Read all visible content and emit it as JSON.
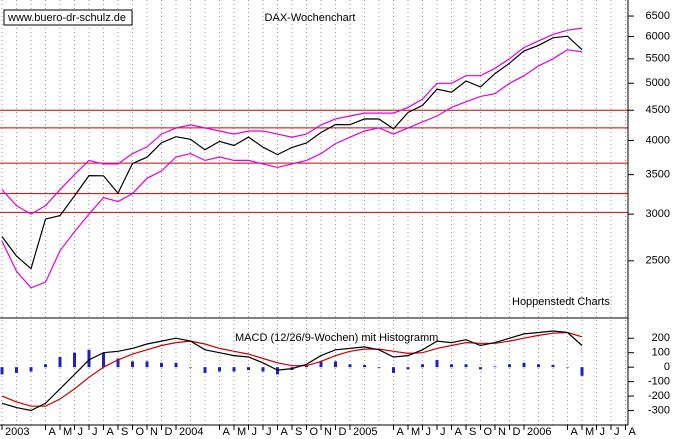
{
  "chart_data": [
    {
      "type": "line",
      "title": "DAX-Wochenchart",
      "annotations": [
        "www.buero-dr-schulz.de",
        "Hoppenstedt Charts"
      ],
      "log_scale": true,
      "grid": true,
      "ylim": [
        2000,
        6920
      ],
      "yticks": [
        2500,
        3000,
        3500,
        4000,
        4500,
        5000,
        5500,
        6000,
        6500
      ],
      "hlines": [
        4500,
        4200,
        3660,
        3250,
        3020
      ],
      "hline_color": "#cc0000",
      "series": [
        {
          "color": "#e000e0",
          "values": [
            3300,
            3100,
            3000,
            3100,
            3300,
            3500,
            3700,
            3650,
            3650,
            3800,
            3900,
            4100,
            4200,
            4250,
            4200,
            4150,
            4100,
            4150,
            4150,
            4100,
            4050,
            4100,
            4250,
            4350,
            4400,
            4450,
            4450,
            4450,
            4550,
            4700,
            5000,
            5000,
            5150,
            5150,
            5300,
            5500,
            5750,
            5900,
            6050,
            6150,
            6200,
            null,
            null,
            null
          ]
        },
        {
          "color": "#e000e0",
          "values": [
            2700,
            2400,
            2250,
            2300,
            2600,
            2800,
            3000,
            3200,
            3150,
            3250,
            3450,
            3550,
            3750,
            3800,
            3700,
            3750,
            3700,
            3700,
            3650,
            3600,
            3650,
            3700,
            3800,
            3950,
            4050,
            4150,
            4200,
            4100,
            4200,
            4300,
            4400,
            4550,
            4650,
            4750,
            4800,
            5000,
            5150,
            5350,
            5500,
            5700,
            5650,
            null,
            null,
            null
          ]
        },
        {
          "color": "#000000",
          "values": [
            2748,
            2547,
            2424,
            2942,
            2983,
            3221,
            3487,
            3484,
            3257,
            3655,
            3746,
            3965,
            4058,
            4018,
            3856,
            3985,
            3921,
            4052,
            3895,
            3785,
            3893,
            3960,
            4126,
            4256,
            4254,
            4350,
            4349,
            4185,
            4460,
            4586,
            4886,
            4829,
            5044,
            4929,
            5193,
            5408,
            5674,
            5796,
            5970,
            6009,
            5700,
            null,
            null,
            null
          ]
        }
      ]
    },
    {
      "type": "line",
      "title": "MACD (12/26/9-Wochen) mit Histogramm",
      "grid": true,
      "categories": [
        "2003",
        null,
        null,
        "A",
        "M",
        "J",
        "J",
        "A",
        "S",
        "O",
        "N",
        "D",
        "2004",
        null,
        null,
        "A",
        "M",
        "J",
        "J",
        "A",
        "S",
        "O",
        "N",
        "D",
        "2005",
        null,
        null,
        "A",
        "M",
        "J",
        "J",
        "A",
        "S",
        "O",
        "N",
        "D",
        "2006",
        null,
        null,
        "A",
        "M",
        "J",
        "J",
        "A"
      ],
      "ylim": [
        -400,
        340
      ],
      "yticks": [
        200,
        100,
        0,
        -100,
        -200,
        -300
      ],
      "series": [
        {
          "style": "bar",
          "color": "#2020c0",
          "values": [
            -50,
            -40,
            -30,
            20,
            70,
            100,
            120,
            100,
            60,
            40,
            40,
            30,
            30,
            0,
            -40,
            -30,
            -30,
            -20,
            -30,
            -50,
            -20,
            10,
            40,
            40,
            20,
            15,
            -5,
            -40,
            -15,
            20,
            50,
            20,
            20,
            -15,
            5,
            20,
            30,
            20,
            15,
            0,
            -60,
            null,
            null,
            null
          ]
        },
        {
          "color": "#cc0000",
          "values": [
            -200,
            -240,
            -270,
            -270,
            -220,
            -150,
            -70,
            0,
            50,
            90,
            120,
            150,
            170,
            180,
            160,
            130,
            110,
            90,
            60,
            30,
            10,
            10,
            40,
            80,
            110,
            125,
            125,
            110,
            95,
            100,
            130,
            150,
            170,
            165,
            165,
            180,
            200,
            220,
            235,
            240,
            210,
            null,
            null,
            null
          ]
        },
        {
          "color": "#000000",
          "values": [
            -250,
            -280,
            -300,
            -250,
            -150,
            -50,
            50,
            100,
            110,
            130,
            160,
            180,
            200,
            180,
            120,
            100,
            80,
            70,
            30,
            -20,
            -10,
            20,
            80,
            120,
            130,
            140,
            120,
            70,
            80,
            120,
            180,
            170,
            190,
            150,
            170,
            200,
            230,
            240,
            250,
            240,
            150,
            null,
            null,
            null
          ]
        }
      ]
    }
  ]
}
